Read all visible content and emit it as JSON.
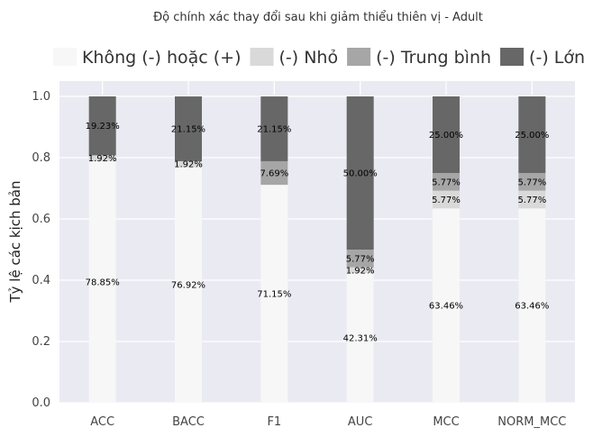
{
  "chart_data": {
    "type": "bar",
    "stacked": true,
    "title": "Độ chính xác thay đổi sau khi giảm thiểu thiên vị - Adult",
    "xlabel": "",
    "ylabel": "Tỷ lệ các kịch bản",
    "ylim": [
      0,
      1.05
    ],
    "yticks": [
      0.0,
      0.2,
      0.4,
      0.6,
      0.8,
      1.0
    ],
    "ytick_labels": [
      "0.0",
      "0.2",
      "0.4",
      "0.6",
      "0.8",
      "1.0"
    ],
    "grid": true,
    "legend_position": "top",
    "categories": [
      "ACC",
      "BACC",
      "F1",
      "AUC",
      "MCC",
      "NORM_MCC"
    ],
    "series": [
      {
        "name": "Không (-) hoặc (+)",
        "color": "#f7f7f7",
        "values": [
          0.7885,
          0.7692,
          0.7115,
          0.4231,
          0.6346,
          0.6346
        ],
        "labels": [
          "78.85%",
          "76.92%",
          "71.15%",
          "42.31%",
          "63.46%",
          "63.46%"
        ]
      },
      {
        "name": "(-) Nhỏ",
        "color": "#d9d9d9",
        "values": [
          0.0192,
          0.0192,
          0.0,
          0.0192,
          0.0577,
          0.0577
        ],
        "labels": [
          "1.92%",
          "1.92%",
          "",
          "1.92%",
          "5.77%",
          "5.77%"
        ]
      },
      {
        "name": "(-) Trung bình",
        "color": "#a6a6a6",
        "values": [
          0.0,
          0.0,
          0.0769,
          0.0577,
          0.0577,
          0.0577
        ],
        "labels": [
          "",
          "",
          "7.69%",
          "5.77%",
          "5.77%",
          "5.77%"
        ]
      },
      {
        "name": "(-) Lớn",
        "color": "#676767",
        "values": [
          0.1923,
          0.2115,
          0.2115,
          0.5,
          0.25,
          0.25
        ],
        "labels": [
          "19.23%",
          "21.15%",
          "21.15%",
          "50.00%",
          "25.00%",
          "25.00%"
        ]
      }
    ]
  }
}
